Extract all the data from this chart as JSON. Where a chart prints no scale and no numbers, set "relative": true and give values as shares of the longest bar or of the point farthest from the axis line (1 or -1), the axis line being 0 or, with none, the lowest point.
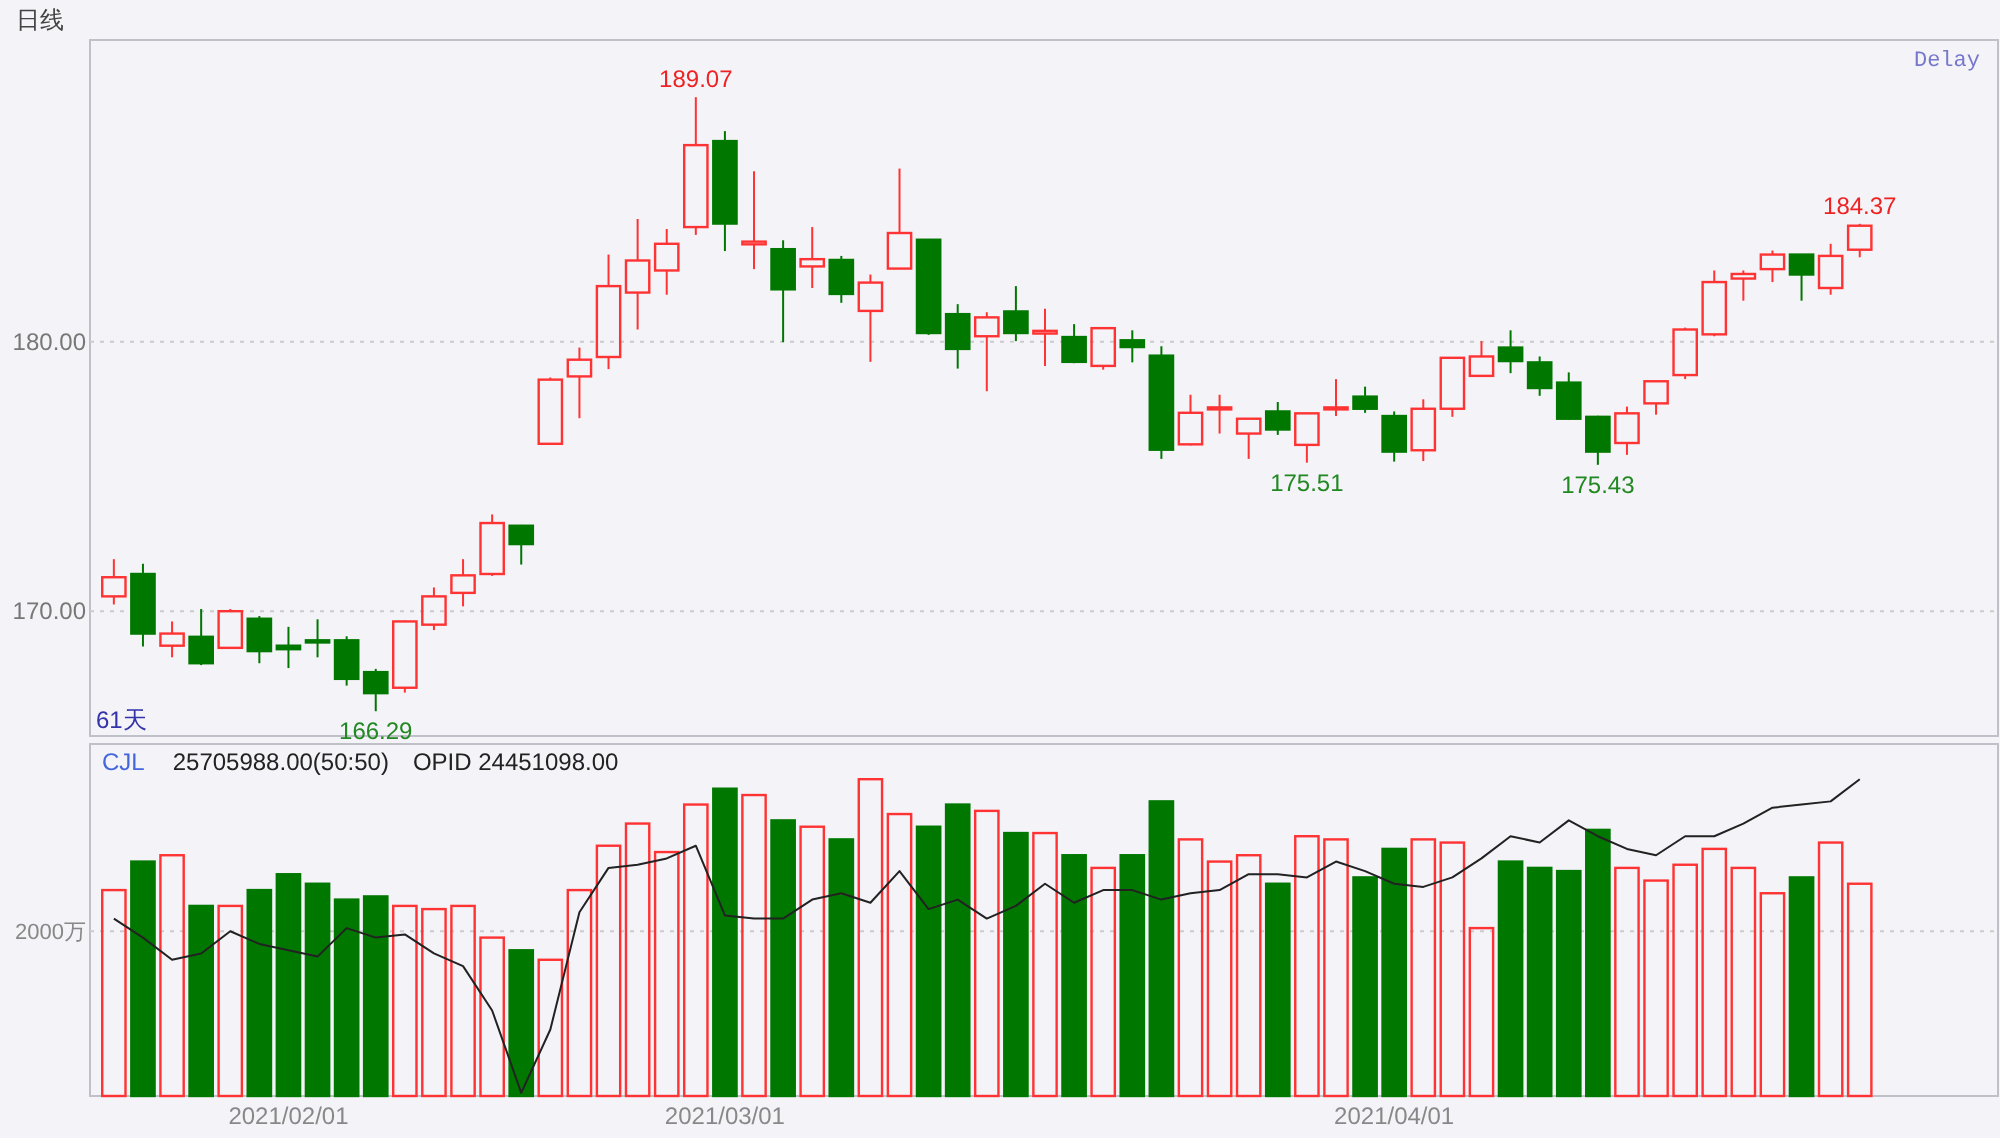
{
  "chart_data": [
    {
      "type": "candlestick",
      "title": "日线",
      "categories": [
        null,
        null,
        null,
        null,
        null,
        null,
        "2021/02/01",
        null,
        null,
        null,
        null,
        null,
        null,
        null,
        null,
        null,
        null,
        null,
        null,
        null,
        null,
        "2021/03/01",
        null,
        null,
        null,
        null,
        null,
        null,
        null,
        null,
        null,
        null,
        null,
        null,
        null,
        null,
        null,
        null,
        null,
        null,
        null,
        null,
        null,
        null,
        "2021/04/01",
        null,
        null,
        null,
        null,
        null,
        null,
        null,
        null,
        null,
        null,
        null,
        null,
        null,
        null,
        null,
        null
      ],
      "ohlc": [
        [
          170.55,
          171.93,
          170.25,
          171.26
        ],
        [
          171.38,
          171.76,
          168.69,
          169.17
        ],
        [
          168.72,
          169.62,
          168.29,
          169.17
        ],
        [
          169.05,
          170.08,
          168.0,
          168.07
        ],
        [
          168.64,
          170.08,
          168.6,
          170.0
        ],
        [
          169.72,
          169.82,
          168.07,
          168.52
        ],
        [
          168.72,
          169.42,
          167.89,
          168.59
        ],
        [
          168.92,
          169.7,
          168.29,
          168.84
        ],
        [
          168.92,
          169.07,
          167.24,
          167.49
        ],
        [
          167.74,
          167.86,
          166.29,
          166.96
        ],
        [
          167.16,
          169.65,
          166.98,
          169.62
        ],
        [
          169.5,
          170.88,
          169.3,
          170.55
        ],
        [
          170.68,
          171.93,
          170.18,
          171.33
        ],
        [
          171.38,
          173.59,
          171.31,
          173.27
        ],
        [
          173.17,
          173.2,
          171.73,
          172.49
        ],
        [
          176.21,
          178.67,
          176.2,
          178.59
        ],
        [
          178.71,
          179.78,
          177.16,
          179.33
        ],
        [
          179.43,
          183.23,
          178.98,
          182.06
        ],
        [
          181.82,
          184.55,
          180.45,
          183.01
        ],
        [
          182.64,
          184.18,
          181.74,
          183.63
        ],
        [
          184.25,
          189.07,
          183.96,
          187.29
        ],
        [
          187.44,
          187.81,
          183.36,
          184.38
        ],
        [
          183.61,
          186.32,
          182.69,
          183.71
        ],
        [
          183.43,
          183.76,
          179.98,
          181.94
        ],
        [
          182.79,
          184.25,
          181.99,
          183.06
        ],
        [
          183.03,
          183.18,
          181.44,
          181.77
        ],
        [
          181.14,
          182.49,
          179.25,
          182.19
        ],
        [
          182.71,
          186.42,
          182.7,
          184.03
        ],
        [
          183.78,
          183.8,
          180.25,
          180.32
        ],
        [
          181.02,
          181.39,
          179.0,
          179.73
        ],
        [
          180.2,
          181.09,
          178.16,
          180.9
        ],
        [
          181.12,
          182.06,
          180.02,
          180.32
        ],
        [
          180.3,
          181.22,
          179.1,
          180.4
        ],
        [
          180.17,
          180.65,
          179.2,
          179.25
        ],
        [
          179.1,
          180.5,
          178.96,
          180.5
        ],
        [
          180.05,
          180.42,
          179.23,
          179.8
        ],
        [
          179.48,
          179.83,
          175.65,
          175.99
        ],
        [
          176.19,
          178.03,
          176.15,
          177.36
        ],
        [
          177.49,
          178.03,
          176.59,
          177.56
        ],
        [
          176.59,
          177.15,
          175.65,
          177.14
        ],
        [
          177.41,
          177.76,
          176.54,
          176.74
        ],
        [
          176.17,
          177.35,
          175.51,
          177.34
        ],
        [
          177.49,
          178.61,
          177.24,
          177.56
        ],
        [
          177.96,
          178.33,
          177.36,
          177.51
        ],
        [
          177.24,
          177.41,
          175.55,
          175.92
        ],
        [
          175.97,
          177.86,
          175.57,
          177.51
        ],
        [
          177.51,
          179.42,
          177.21,
          179.4
        ],
        [
          178.73,
          180.02,
          178.7,
          179.45
        ],
        [
          179.78,
          180.42,
          178.83,
          179.28
        ],
        [
          179.23,
          179.45,
          177.99,
          178.28
        ],
        [
          178.48,
          178.86,
          177.1,
          177.14
        ],
        [
          177.21,
          177.25,
          175.43,
          175.92
        ],
        [
          176.24,
          177.59,
          175.8,
          177.34
        ],
        [
          177.71,
          178.55,
          177.29,
          178.53
        ],
        [
          178.76,
          180.52,
          178.61,
          180.45
        ],
        [
          180.27,
          182.64,
          180.2,
          182.21
        ],
        [
          182.34,
          182.64,
          181.52,
          182.51
        ],
        [
          182.69,
          183.38,
          182.21,
          183.23
        ],
        [
          183.23,
          183.25,
          181.52,
          182.49
        ],
        [
          181.99,
          183.63,
          181.74,
          183.18
        ],
        [
          183.41,
          184.37,
          183.13,
          184.3
        ]
      ],
      "colors": [
        "#ff3333",
        "#007800",
        "#ff3333",
        "#007800",
        "#ff3333",
        "#007800",
        "#007800",
        "#007800",
        "#007800",
        "#007800",
        "#ff3333",
        "#ff3333",
        "#ff3333",
        "#ff3333",
        "#007800",
        "#ff3333",
        "#ff3333",
        "#ff3333",
        "#ff3333",
        "#ff3333",
        "#ff3333",
        "#007800",
        "#ff3333",
        "#007800",
        "#ff3333",
        "#007800",
        "#ff3333",
        "#ff3333",
        "#007800",
        "#007800",
        "#ff3333",
        "#007800",
        "#ff3333",
        "#007800",
        "#ff3333",
        "#007800",
        "#007800",
        "#ff3333",
        "#ff3333",
        "#ff3333",
        "#007800",
        "#ff3333",
        "#ff3333",
        "#007800",
        "#007800",
        "#ff3333",
        "#ff3333",
        "#ff3333",
        "#007800",
        "#007800",
        "#007800",
        "#007800",
        "#ff3333",
        "#ff3333",
        "#ff3333",
        "#ff3333",
        "#ff3333",
        "#ff3333",
        "#007800",
        "#ff3333",
        "#ff3333"
      ],
      "ylim": [
        165.37,
        191.19
      ],
      "yticks": [
        {
          "value": 170,
          "label": "170.00"
        },
        {
          "value": 180,
          "label": "180.00"
        }
      ],
      "grid": "y",
      "tick_labels": "y",
      "annotations": [
        "61天",
        "Delay",
        "189.07",
        "166.29",
        "175.51",
        "175.43",
        "184.37"
      ]
    },
    {
      "type": "bar",
      "title": "CJL",
      "relative": true,
      "annotations": [
        "25705988.00(50:50)",
        "OPID 24451098.00"
      ],
      "categories": [
        null,
        null,
        null,
        null,
        null,
        null,
        "2021/02/01",
        null,
        null,
        null,
        null,
        null,
        null,
        null,
        null,
        null,
        null,
        null,
        null,
        null,
        null,
        "2021/03/01",
        null,
        null,
        null,
        null,
        null,
        null,
        null,
        null,
        null,
        null,
        null,
        null,
        null,
        null,
        null,
        null,
        null,
        null,
        null,
        null,
        null,
        null,
        "2021/04/01",
        null,
        null,
        null,
        null,
        null,
        null,
        null,
        null,
        null,
        null,
        null,
        null,
        null,
        null,
        null,
        null
      ],
      "series": [
        {
          "type": "bar",
          "colors": [
            "#ff3333",
            "#007800",
            "#ff3333",
            "#007800",
            "#ff3333",
            "#007800",
            "#007800",
            "#007800",
            "#007800",
            "#007800",
            "#ff3333",
            "#ff3333",
            "#ff3333",
            "#ff3333",
            "#007800",
            "#ff3333",
            "#ff3333",
            "#ff3333",
            "#ff3333",
            "#ff3333",
            "#ff3333",
            "#007800",
            "#ff3333",
            "#007800",
            "#ff3333",
            "#007800",
            "#ff3333",
            "#ff3333",
            "#007800",
            "#007800",
            "#ff3333",
            "#007800",
            "#ff3333",
            "#007800",
            "#ff3333",
            "#007800",
            "#007800",
            "#ff3333",
            "#ff3333",
            "#ff3333",
            "#007800",
            "#ff3333",
            "#ff3333",
            "#007800",
            "#007800",
            "#ff3333",
            "#ff3333",
            "#ff3333",
            "#007800",
            "#007800",
            "#007800",
            "#007800",
            "#ff3333",
            "#ff3333",
            "#ff3333",
            "#ff3333",
            "#ff3333",
            "#ff3333",
            "#007800",
            "#ff3333",
            "#ff3333"
          ],
          "values": [
            0.65,
            0.74,
            0.76,
            0.6,
            0.6,
            0.65,
            0.7,
            0.67,
            0.62,
            0.63,
            0.6,
            0.59,
            0.6,
            0.5,
            0.46,
            0.43,
            0.65,
            0.79,
            0.86,
            0.77,
            0.92,
            0.97,
            0.95,
            0.87,
            0.85,
            0.81,
            1,
            0.89,
            0.85,
            0.92,
            0.9,
            0.83,
            0.83,
            0.76,
            0.72,
            0.76,
            0.93,
            0.81,
            0.74,
            0.76,
            0.67,
            0.82,
            0.81,
            0.69,
            0.78,
            0.81,
            0.8,
            0.53,
            0.74,
            0.72,
            0.71,
            0.84,
            0.72,
            0.68,
            0.73,
            0.78,
            0.72,
            0.64,
            0.69,
            0.8,
            0.67
          ]
        },
        {
          "type": "line",
          "color": "#222222",
          "values": [
            0.56,
            0.5,
            0.43,
            0.45,
            0.52,
            0.48,
            0.46,
            0.44,
            0.53,
            0.5,
            0.51,
            0.45,
            0.41,
            0.27,
            0.01,
            0.21,
            0.58,
            0.72,
            0.73,
            0.75,
            0.79,
            0.57,
            0.56,
            0.56,
            0.62,
            0.64,
            0.61,
            0.71,
            0.59,
            0.62,
            0.56,
            0.6,
            0.67,
            0.61,
            0.65,
            0.65,
            0.62,
            0.64,
            0.65,
            0.7,
            0.7,
            0.69,
            0.74,
            0.71,
            0.67,
            0.66,
            0.69,
            0.75,
            0.82,
            0.8,
            0.87,
            0.82,
            0.78,
            0.76,
            0.82,
            0.82,
            0.86,
            0.91,
            0.92,
            0.93,
            1.0
          ]
        }
      ],
      "ref_lines": [
        {
          "axis": "y",
          "value": 0.52,
          "label": "2000万",
          "color": "#cccccc",
          "line_style": "dotted"
        }
      ]
    }
  ]
}
